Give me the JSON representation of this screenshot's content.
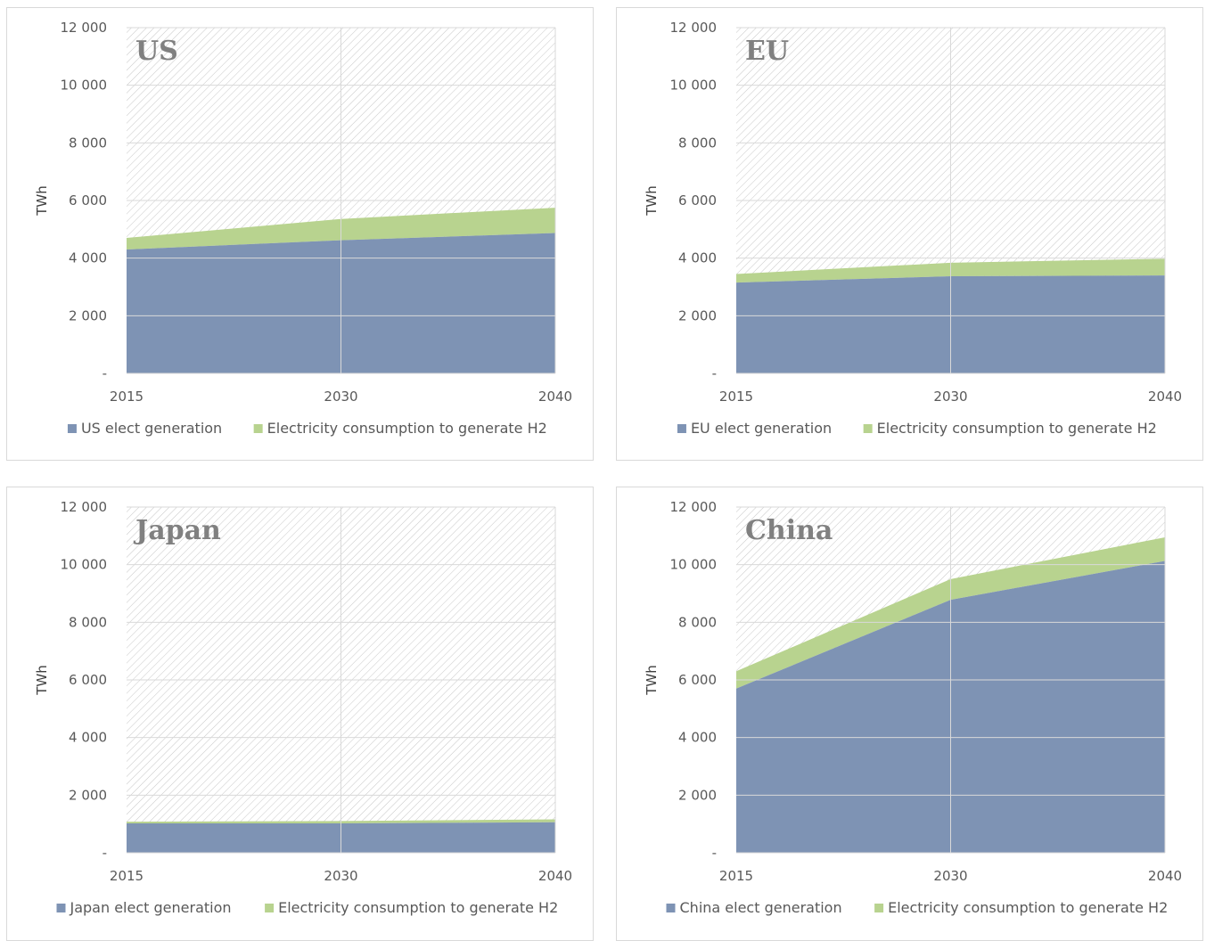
{
  "colors": {
    "generation": "#7e93b4",
    "h2": "#b8d38f",
    "background_hatch": "#c8c8c8",
    "gridline": "#d9d9d9"
  },
  "chart_data": [
    {
      "type": "area",
      "title": "US",
      "ylabel": "TWh",
      "x": [
        "2015",
        "2030",
        "2040"
      ],
      "ylim": [
        0,
        12000
      ],
      "yticks": [
        "-",
        "2 000",
        "4 000",
        "6 000",
        "8 000",
        "10 000",
        "12 000"
      ],
      "stacked": true,
      "series": [
        {
          "name": "US elect generation",
          "values": [
            4300,
            4620,
            4870
          ]
        },
        {
          "name": "Electricity consumption to generate H2",
          "values": [
            400,
            740,
            880
          ]
        }
      ],
      "grid": true,
      "legend": "bottom"
    },
    {
      "type": "area",
      "title": "EU",
      "ylabel": "TWh",
      "x": [
        "2015",
        "2030",
        "2040"
      ],
      "ylim": [
        0,
        12000
      ],
      "yticks": [
        "-",
        "2 000",
        "4 000",
        "6 000",
        "8 000",
        "10 000",
        "12 000"
      ],
      "stacked": true,
      "series": [
        {
          "name": "EU elect generation",
          "values": [
            3150,
            3370,
            3400
          ]
        },
        {
          "name": "Electricity consumption to generate H2",
          "values": [
            300,
            470,
            580
          ]
        }
      ],
      "grid": true,
      "legend": "bottom"
    },
    {
      "type": "area",
      "title": "Japan",
      "ylabel": "TWh",
      "x": [
        "2015",
        "2030",
        "2040"
      ],
      "ylim": [
        0,
        12000
      ],
      "yticks": [
        "-",
        "2 000",
        "4 000",
        "6 000",
        "8 000",
        "10 000",
        "12 000"
      ],
      "stacked": true,
      "series": [
        {
          "name": "Japan elect generation",
          "values": [
            1020,
            1020,
            1060
          ]
        },
        {
          "name": "Electricity consumption to generate H2",
          "values": [
            60,
            80,
            100
          ]
        }
      ],
      "grid": true,
      "legend": "bottom"
    },
    {
      "type": "area",
      "title": "China",
      "ylabel": "TWh",
      "x": [
        "2015",
        "2030",
        "2040"
      ],
      "ylim": [
        0,
        12000
      ],
      "yticks": [
        "-",
        "2 000",
        "4 000",
        "6 000",
        "8 000",
        "10 000",
        "12 000"
      ],
      "stacked": true,
      "series": [
        {
          "name": "China elect generation",
          "values": [
            5700,
            8780,
            10130
          ]
        },
        {
          "name": "Electricity consumption to generate H2",
          "values": [
            600,
            720,
            820
          ]
        }
      ],
      "grid": true,
      "legend": "bottom"
    }
  ]
}
